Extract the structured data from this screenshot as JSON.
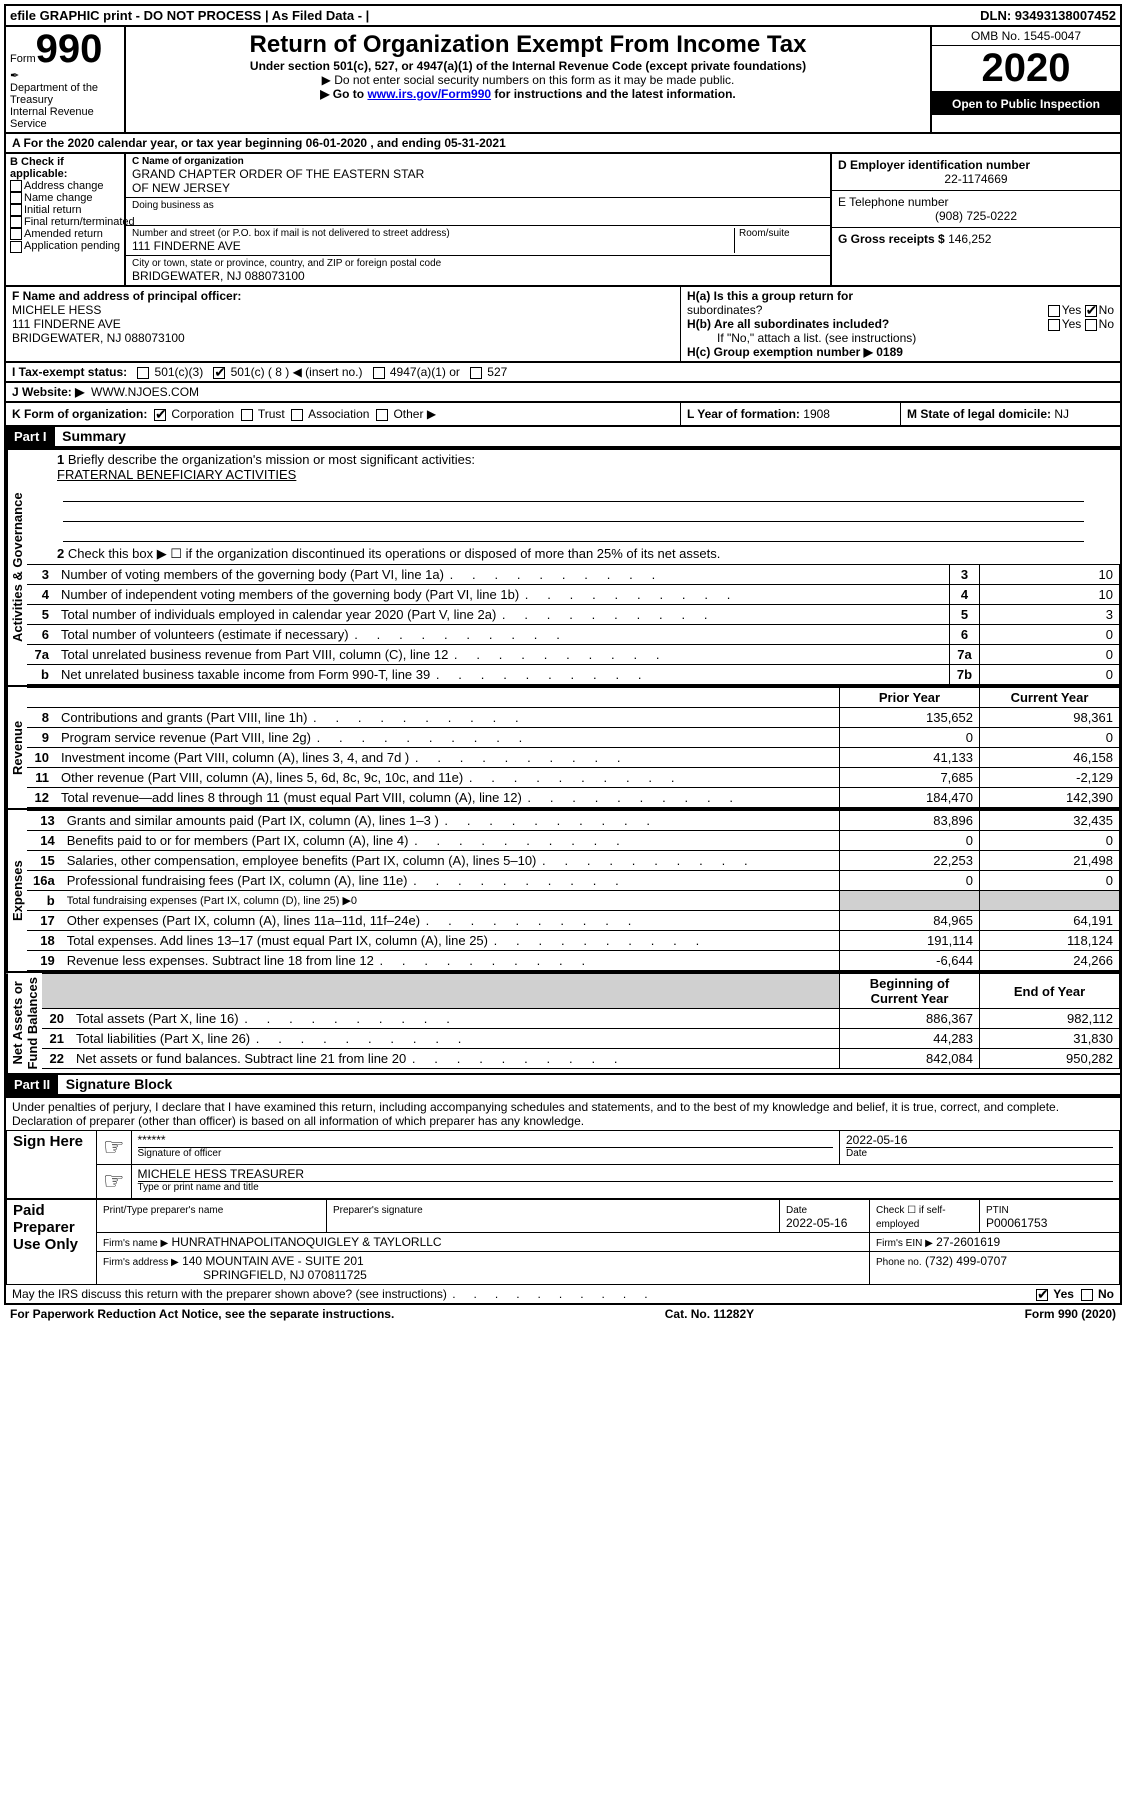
{
  "topbar": {
    "left": "efile GRAPHIC print - DO NOT PROCESS   | As Filed Data - |",
    "right": "DLN: 93493138007452"
  },
  "header": {
    "form_label": "Form",
    "form_num": "990",
    "dept1": "Department of the",
    "dept2": "Treasury",
    "dept3": "Internal Revenue Service",
    "title": "Return of Organization Exempt From Income Tax",
    "sub": "Under section 501(c), 527, or 4947(a)(1) of the Internal Revenue Code (except private foundations)",
    "note1": "▶ Do not enter social security numbers on this form as it may be made public.",
    "note2_pre": "▶ Go to ",
    "note2_link": "www.irs.gov/Form990",
    "note2_post": " for instructions and the latest information.",
    "omb": "OMB No. 1545-0047",
    "year": "2020",
    "inspection": "Open to Public Inspection"
  },
  "rowA": "A   For the 2020 calendar year, or tax year beginning 06-01-2020   , and ending 05-31-2021",
  "B": {
    "title": "B Check if applicable:",
    "items": [
      "Address change",
      "Name change",
      "Initial return",
      "Final return/terminated",
      "Amended return",
      "Application pending"
    ]
  },
  "C": {
    "name_label": "C Name of organization",
    "name1": "GRAND CHAPTER ORDER OF THE EASTERN STAR",
    "name2": "OF NEW JERSEY",
    "dba_label": "Doing business as",
    "street_label": "Number and street (or P.O. box if mail is not delivered to street address)",
    "suite_label": "Room/suite",
    "street": "111 FINDERNE AVE",
    "city_label": "City or town, state or province, country, and ZIP or foreign postal code",
    "city": "BRIDGEWATER, NJ  088073100"
  },
  "D": {
    "label": "D Employer identification number",
    "value": "22-1174669"
  },
  "E": {
    "label": "E Telephone number",
    "value": "(908) 725-0222"
  },
  "G": {
    "label": "G Gross receipts $",
    "value": "146,252"
  },
  "F": {
    "label": "F  Name and address of principal officer:",
    "l1": "MICHELE HESS",
    "l2": "111 FINDERNE AVE",
    "l3": "BRIDGEWATER, NJ  088073100"
  },
  "H": {
    "a": "H(a)  Is this a group return for",
    "a2": "subordinates?",
    "b": "H(b)  Are all subordinates included?",
    "b_note": "If \"No,\" attach a list. (see instructions)",
    "c": "H(c)  Group exemption number ▶   0189",
    "yes": "Yes",
    "no": "No"
  },
  "I": {
    "label": "I   Tax-exempt status:",
    "insert": "( 8 ) ◀ (insert no.)",
    "c3": "501(c)(3)",
    "c": "501(c)",
    "a1": "4947(a)(1) or",
    "s527": "527"
  },
  "J": {
    "label": "J   Website: ▶",
    "value": "WWW.NJOES.COM"
  },
  "K": {
    "label": "K Form of organization:",
    "corp": "Corporation",
    "trust": "Trust",
    "assoc": "Association",
    "other": "Other ▶"
  },
  "L": {
    "label": "L Year of formation:",
    "value": "1908"
  },
  "M": {
    "label": "M State of legal domicile:",
    "value": "NJ"
  },
  "partI": {
    "hdr": "Part I",
    "title": "Summary"
  },
  "line1": {
    "num": "1",
    "text": "Briefly describe the organization's mission or most significant activities:",
    "val": "FRATERNAL BENEFICIARY ACTIVITIES"
  },
  "line2": {
    "num": "2",
    "text": "Check this box ▶ ☐ if the organization discontinued its operations or disposed of more than 25% of its net assets."
  },
  "gov_label": "Activities & Governance",
  "rev_label": "Revenue",
  "exp_label": "Expenses",
  "net_label": "Net Assets or\nFund Balances",
  "govlines": [
    {
      "n": "3",
      "t": "Number of voting members of the governing body (Part VI, line 1a)",
      "b": "3",
      "v": "10"
    },
    {
      "n": "4",
      "t": "Number of independent voting members of the governing body (Part VI, line 1b)",
      "b": "4",
      "v": "10"
    },
    {
      "n": "5",
      "t": "Total number of individuals employed in calendar year 2020 (Part V, line 2a)",
      "b": "5",
      "v": "3"
    },
    {
      "n": "6",
      "t": "Total number of volunteers (estimate if necessary)",
      "b": "6",
      "v": "0"
    },
    {
      "n": "7a",
      "t": "Total unrelated business revenue from Part VIII, column (C), line 12",
      "b": "7a",
      "v": "0"
    },
    {
      "n": "b",
      "t": "Net unrelated business taxable income from Form 990-T, line 39",
      "b": "7b",
      "v": "0"
    }
  ],
  "twoColHdr": {
    "prior": "Prior Year",
    "current": "Current Year"
  },
  "revlines": [
    {
      "n": "8",
      "t": "Contributions and grants (Part VIII, line 1h)",
      "p": "135,652",
      "c": "98,361"
    },
    {
      "n": "9",
      "t": "Program service revenue (Part VIII, line 2g)",
      "p": "0",
      "c": "0"
    },
    {
      "n": "10",
      "t": "Investment income (Part VIII, column (A), lines 3, 4, and 7d )",
      "p": "41,133",
      "c": "46,158"
    },
    {
      "n": "11",
      "t": "Other revenue (Part VIII, column (A), lines 5, 6d, 8c, 9c, 10c, and 11e)",
      "p": "7,685",
      "c": "-2,129"
    },
    {
      "n": "12",
      "t": "Total revenue—add lines 8 through 11 (must equal Part VIII, column (A), line 12)",
      "p": "184,470",
      "c": "142,390"
    }
  ],
  "explines": [
    {
      "n": "13",
      "t": "Grants and similar amounts paid (Part IX, column (A), lines 1–3 )",
      "p": "83,896",
      "c": "32,435"
    },
    {
      "n": "14",
      "t": "Benefits paid to or for members (Part IX, column (A), line 4)",
      "p": "0",
      "c": "0"
    },
    {
      "n": "15",
      "t": "Salaries, other compensation, employee benefits (Part IX, column (A), lines 5–10)",
      "p": "22,253",
      "c": "21,498"
    },
    {
      "n": "16a",
      "t": "Professional fundraising fees (Part IX, column (A), line 11e)",
      "p": "0",
      "c": "0"
    },
    {
      "n": "b",
      "t": "Total fundraising expenses (Part IX, column (D), line 25) ▶0",
      "p": "",
      "c": "",
      "gray": true
    },
    {
      "n": "17",
      "t": "Other expenses (Part IX, column (A), lines 11a–11d, 11f–24e)",
      "p": "84,965",
      "c": "64,191"
    },
    {
      "n": "18",
      "t": "Total expenses. Add lines 13–17 (must equal Part IX, column (A), line 25)",
      "p": "191,114",
      "c": "118,124"
    },
    {
      "n": "19",
      "t": "Revenue less expenses. Subtract line 18 from line 12",
      "p": "-6,644",
      "c": "24,266"
    }
  ],
  "netHdr": {
    "begin": "Beginning of Current Year",
    "end": "End of Year"
  },
  "netlines": [
    {
      "n": "20",
      "t": "Total assets (Part X, line 16)",
      "p": "886,367",
      "c": "982,112"
    },
    {
      "n": "21",
      "t": "Total liabilities (Part X, line 26)",
      "p": "44,283",
      "c": "31,830"
    },
    {
      "n": "22",
      "t": "Net assets or fund balances. Subtract line 21 from line 20",
      "p": "842,084",
      "c": "950,282"
    }
  ],
  "partII": {
    "hdr": "Part II",
    "title": "Signature Block"
  },
  "declare": "Under penalties of perjury, I declare that I have examined this return, including accompanying schedules and statements, and to the best of my knowledge and belief, it is true, correct, and complete. Declaration of preparer (other than officer) is based on all information of which preparer has any knowledge.",
  "sign": {
    "here": "Sign Here",
    "stars": "******",
    "sig_label": "Signature of officer",
    "date": "2022-05-16",
    "date_label": "Date",
    "name": "MICHELE HESS TREASURER",
    "name_label": "Type or print name and title"
  },
  "paid": {
    "title": "Paid Preparer Use Only",
    "c1": "Print/Type preparer's name",
    "c2": "Preparer's signature",
    "c3": "Date",
    "date": "2022-05-16",
    "check": "Check ☐ if self-employed",
    "ptin_l": "PTIN",
    "ptin": "P00061753",
    "firm_l": "Firm's name    ▶",
    "firm": "HUNRATHNAPOLITANOQUIGLEY & TAYLORLLC",
    "ein_l": "Firm's EIN ▶",
    "ein": "27-2601619",
    "addr_l": "Firm's address ▶",
    "addr1": "140 MOUNTAIN AVE - SUITE 201",
    "addr2": "SPRINGFIELD, NJ  070811725",
    "phone_l": "Phone no.",
    "phone": "(732) 499-0707"
  },
  "irs_q": "May the IRS discuss this return with the preparer shown above? (see instructions)",
  "footer": {
    "l": "For Paperwork Reduction Act Notice, see the separate instructions.",
    "m": "Cat. No. 11282Y",
    "r": "Form 990 (2020)"
  }
}
